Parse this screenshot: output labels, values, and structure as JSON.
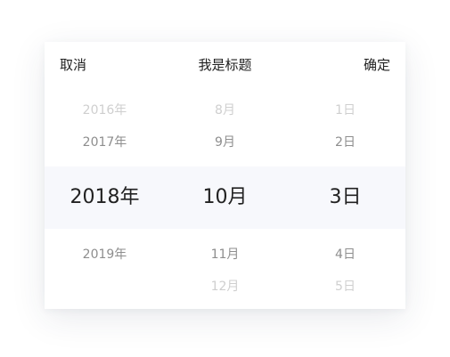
{
  "header": {
    "cancel_label": "取消",
    "title": "我是标题",
    "confirm_label": "确定"
  },
  "picker": {
    "year": [
      "2016年",
      "2017年",
      "2018年",
      "2019年",
      ""
    ],
    "month": [
      "8月",
      "9月",
      "10月",
      "11月",
      "12月"
    ],
    "day": [
      "1日",
      "2日",
      "3日",
      "4日",
      "5日"
    ],
    "selected": {
      "year": "2018年",
      "month": "10月",
      "day": "3日"
    }
  },
  "colors": {
    "primary_text": "#1f1f1f",
    "selected_text": "#222222",
    "near_text": "#8e8e8e",
    "far_text": "#cfcfcf",
    "selection_band": "#f7f8fc",
    "card_background": "#ffffff"
  }
}
